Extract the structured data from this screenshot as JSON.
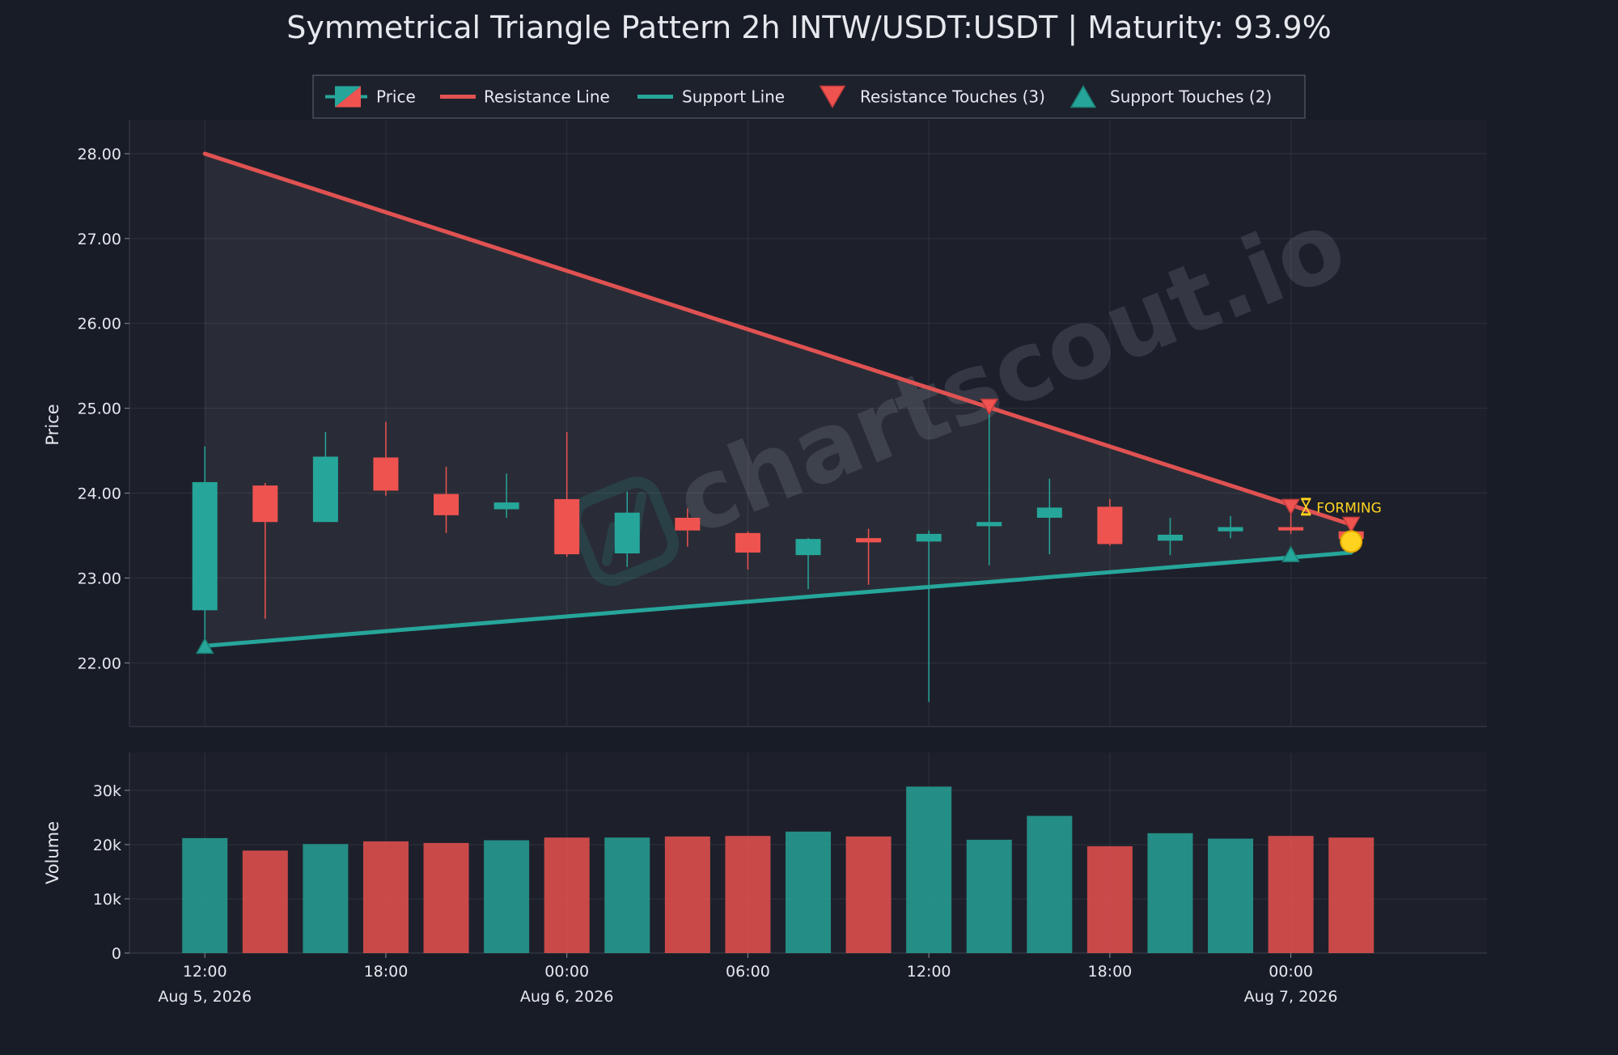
{
  "chart_data": {
    "type": "candlestick",
    "title": "Symmetrical Triangle Pattern 2h INTW/USDT:USDT | Maturity: 93.9%",
    "price_axis": {
      "label": "Price",
      "ylim": [
        21.25,
        28.4
      ],
      "ticks": [
        22,
        23,
        24,
        25,
        26,
        27,
        28
      ],
      "tick_labels": [
        "22.00",
        "23.00",
        "24.00",
        "25.00",
        "26.00",
        "27.00",
        "28.00"
      ]
    },
    "volume_axis": {
      "label": "Volume",
      "ylim": [
        0,
        37000
      ],
      "ticks": [
        0,
        10000,
        20000,
        30000
      ],
      "tick_labels": [
        "0",
        "10k",
        "20k",
        "30k"
      ]
    },
    "x_axis": {
      "tick_times": [
        "2026-08-05 12:00",
        "2026-08-05 18:00",
        "2026-08-06 00:00",
        "2026-08-06 06:00",
        "2026-08-06 12:00",
        "2026-08-06 18:00",
        "2026-08-07 00:00"
      ],
      "tick_labels": [
        "12:00",
        "18:00",
        "00:00",
        "06:00",
        "12:00",
        "18:00",
        "00:00"
      ],
      "date_labels": [
        {
          "at": "2026-08-05 12:00",
          "text": "Aug 5, 2026"
        },
        {
          "at": "2026-08-06 00:00",
          "text": "Aug 6, 2026"
        },
        {
          "at": "2026-08-07 00:00",
          "text": "Aug 7, 2026"
        }
      ],
      "range": [
        "2026-08-05 09:30",
        "2026-08-07 06:30"
      ]
    },
    "legend": {
      "placement": "top-center",
      "entries": [
        {
          "label": "Price",
          "kind": "candle"
        },
        {
          "label": "Resistance Line",
          "kind": "line",
          "color": "#e05252"
        },
        {
          "label": "Support Line",
          "kind": "line",
          "color": "#26a69a"
        },
        {
          "label": "Resistance Touches (3)",
          "kind": "triangle-down",
          "color": "#ef5350"
        },
        {
          "label": "Support Touches (2)",
          "kind": "triangle-up",
          "color": "#26a69a"
        }
      ]
    },
    "candles": [
      {
        "time": "2026-08-05 12:00",
        "open": 22.62,
        "high": 24.55,
        "low": 22.2,
        "close": 24.13,
        "volume": 21200
      },
      {
        "time": "2026-08-05 14:00",
        "open": 24.09,
        "high": 24.12,
        "low": 22.52,
        "close": 23.66,
        "volume": 18900
      },
      {
        "time": "2026-08-05 16:00",
        "open": 23.66,
        "high": 24.72,
        "low": 23.66,
        "close": 24.43,
        "volume": 20100
      },
      {
        "time": "2026-08-05 18:00",
        "open": 24.42,
        "high": 24.84,
        "low": 23.97,
        "close": 24.03,
        "volume": 20600
      },
      {
        "time": "2026-08-05 20:00",
        "open": 23.99,
        "high": 24.31,
        "low": 23.53,
        "close": 23.74,
        "volume": 20300
      },
      {
        "time": "2026-08-05 22:00",
        "open": 23.81,
        "high": 24.23,
        "low": 23.71,
        "close": 23.89,
        "volume": 20800
      },
      {
        "time": "2026-08-06 00:00",
        "open": 23.93,
        "high": 24.72,
        "low": 23.25,
        "close": 23.28,
        "volume": 21300
      },
      {
        "time": "2026-08-06 02:00",
        "open": 23.29,
        "high": 24.02,
        "low": 23.13,
        "close": 23.77,
        "volume": 21300
      },
      {
        "time": "2026-08-06 04:00",
        "open": 23.71,
        "high": 23.82,
        "low": 23.37,
        "close": 23.56,
        "volume": 21500
      },
      {
        "time": "2026-08-06 06:00",
        "open": 23.53,
        "high": 23.55,
        "low": 23.1,
        "close": 23.3,
        "volume": 21600
      },
      {
        "time": "2026-08-06 08:00",
        "open": 23.27,
        "high": 23.47,
        "low": 22.87,
        "close": 23.46,
        "volume": 22400
      },
      {
        "time": "2026-08-06 10:00",
        "open": 23.47,
        "high": 23.58,
        "low": 22.92,
        "close": 23.42,
        "volume": 21500
      },
      {
        "time": "2026-08-06 12:00",
        "open": 23.43,
        "high": 23.56,
        "low": 21.54,
        "close": 23.52,
        "volume": 30700
      },
      {
        "time": "2026-08-06 14:00",
        "open": 23.61,
        "high": 24.98,
        "low": 23.15,
        "close": 23.66,
        "volume": 20900
      },
      {
        "time": "2026-08-06 16:00",
        "open": 23.71,
        "high": 24.17,
        "low": 23.28,
        "close": 23.83,
        "volume": 25300
      },
      {
        "time": "2026-08-06 18:00",
        "open": 23.84,
        "high": 23.93,
        "low": 23.38,
        "close": 23.4,
        "volume": 19700
      },
      {
        "time": "2026-08-06 20:00",
        "open": 23.44,
        "high": 23.71,
        "low": 23.27,
        "close": 23.51,
        "volume": 22100
      },
      {
        "time": "2026-08-06 22:00",
        "open": 23.55,
        "high": 23.73,
        "low": 23.47,
        "close": 23.6,
        "volume": 21100
      },
      {
        "time": "2026-08-07 00:00",
        "open": 23.6,
        "high": 23.88,
        "low": 23.52,
        "close": 23.56,
        "volume": 21600
      },
      {
        "time": "2026-08-07 02:00",
        "open": 23.55,
        "high": 23.6,
        "low": 23.42,
        "close": 23.46,
        "volume": 21300
      }
    ],
    "resistance_line": {
      "start": {
        "time": "2026-08-05 12:00",
        "price": 28.0
      },
      "end": {
        "time": "2026-08-07 02:00",
        "price": 23.63
      }
    },
    "support_line": {
      "start": {
        "time": "2026-08-05 12:00",
        "price": 22.2
      },
      "end": {
        "time": "2026-08-07 02:00",
        "price": 23.3
      }
    },
    "resistance_touches": [
      {
        "time": "2026-08-06 14:00",
        "price": 25.02
      },
      {
        "time": "2026-08-07 00:00",
        "price": 23.84
      },
      {
        "time": "2026-08-07 02:00",
        "price": 23.63
      }
    ],
    "support_touches": [
      {
        "time": "2026-08-05 12:00",
        "price": 22.2
      },
      {
        "time": "2026-08-07 00:00",
        "price": 23.28
      }
    ],
    "current_point": {
      "time": "2026-08-07 02:00",
      "price": 23.43
    },
    "status_label": {
      "text": "FORMING",
      "icon": "hourglass-icon",
      "time": "2026-08-07 00:30",
      "price": 23.84
    },
    "watermark": "chartscout.io",
    "colors": {
      "up": "#26a69a",
      "down": "#ef5350",
      "resistance": "#e05252",
      "support": "#26a69a",
      "forming": "#ffd21f",
      "current_point": "#ffd21f",
      "background": "#181c26",
      "panel": "#1d202b",
      "text": "#e6e8ee"
    }
  }
}
